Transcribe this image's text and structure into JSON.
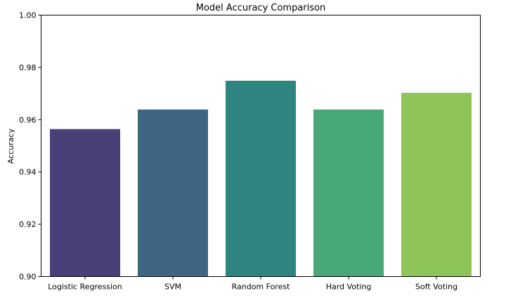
{
  "chart_data": {
    "type": "bar",
    "title": "Model Accuracy Comparison",
    "xlabel": "",
    "ylabel": "Accuracy",
    "categories": [
      "Logistic Regression",
      "SVM",
      "Random Forest",
      "Hard Voting",
      "Soft Voting"
    ],
    "values": [
      0.9564,
      0.9639,
      0.9749,
      0.9639,
      0.9703
    ],
    "colors": [
      "#4b3f78",
      "#3e6682",
      "#2e847e",
      "#47a876",
      "#8fc459"
    ],
    "ylim": [
      0.9,
      1.0
    ],
    "yticks": [
      "0.90",
      "0.92",
      "0.94",
      "0.96",
      "0.98",
      "1.00"
    ],
    "grid": false,
    "legend": "none"
  }
}
